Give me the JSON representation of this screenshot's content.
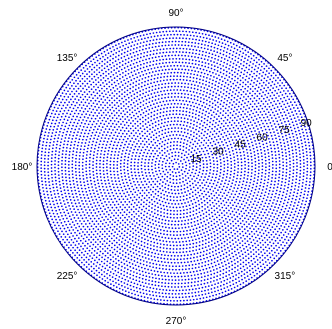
{
  "chart_data": {
    "type": "scatter",
    "projection": "polar",
    "title": "",
    "angle_unit": "degrees",
    "angle_tick_labels": [
      "0",
      "45°",
      "90°",
      "135°",
      "180°",
      "225°",
      "270°",
      "315°"
    ],
    "angle_ticks": [
      0,
      45,
      90,
      135,
      180,
      225,
      270,
      315
    ],
    "radius_tick_labels": [
      "15",
      "30",
      "45",
      "60",
      "75",
      "90"
    ],
    "radius_ticks": [
      15,
      30,
      45,
      60,
      75,
      90
    ],
    "radius_label_angle": 18,
    "rlim": [
      0,
      90
    ],
    "grid": false,
    "point_pattern": "hemispherical sampling grid (~2000 points)",
    "radial_rings": 40,
    "points_per_ring_growth": 1.0,
    "marker_color": "#0000ee",
    "frame_color": "#000080"
  }
}
